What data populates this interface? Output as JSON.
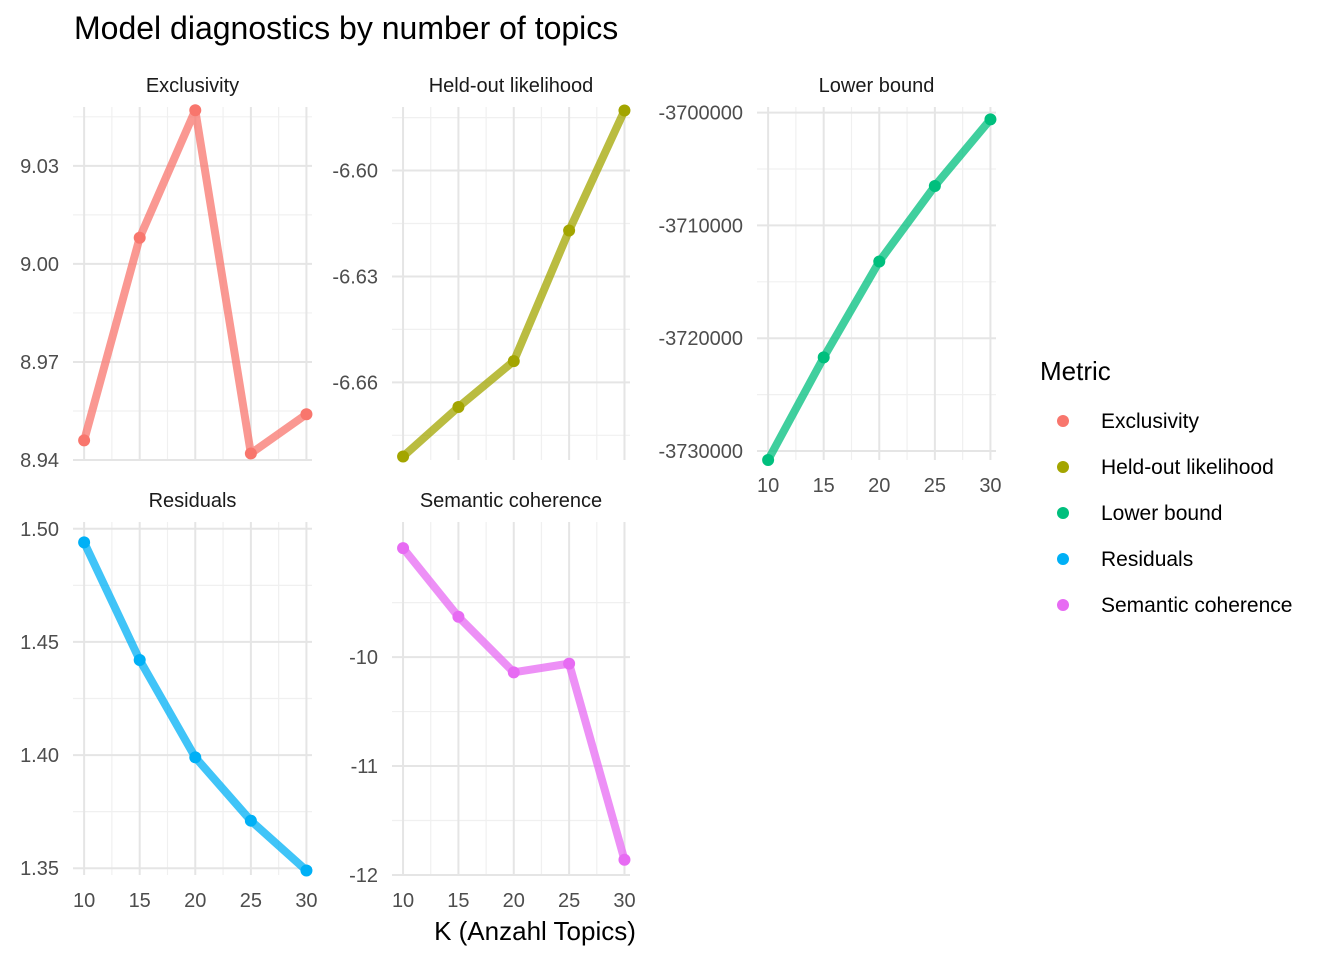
{
  "chart_data": {
    "type": "line",
    "title": "Model diagnostics by number of topics",
    "xlabel": "K (Anzahl Topics)",
    "ylabel": "",
    "x": [
      10,
      15,
      20,
      25,
      30
    ],
    "x_ticks": [
      "10",
      "15",
      "20",
      "25",
      "30"
    ],
    "facet_layout": "wrap, 3 columns, free y scales",
    "grid": true,
    "legend": {
      "title": "Metric",
      "placement": "right",
      "entries": [
        "Exclusivity",
        "Held-out likelihood",
        "Lower bound",
        "Residuals",
        "Semantic coherence"
      ]
    },
    "panels": [
      {
        "name": "Exclusivity",
        "color": "#F8766D",
        "values": [
          8.946,
          9.008,
          9.047,
          8.942,
          8.954
        ],
        "ylim": [
          8.94,
          9.048
        ],
        "y_ticks": [
          8.94,
          8.97,
          9.0,
          9.03
        ],
        "y_tick_labels": [
          "8.94",
          "8.97",
          "9.00",
          "9.03"
        ]
      },
      {
        "name": "Held-out likelihood",
        "color": "#A3A500",
        "values": [
          -6.681,
          -6.667,
          -6.654,
          -6.617,
          -6.583
        ],
        "ylim": [
          -6.682,
          -6.582
        ],
        "y_ticks": [
          -6.66,
          -6.63,
          -6.6
        ],
        "y_tick_labels": [
          "-6.66",
          "-6.63",
          "-6.60"
        ]
      },
      {
        "name": "Lower bound",
        "color": "#00BF7D",
        "values": [
          -3730800,
          -3721700,
          -3713200,
          -3706500,
          -3700600
        ],
        "ylim": [
          -3730800,
          -3699500
        ],
        "y_ticks": [
          -3730000,
          -3720000,
          -3710000,
          -3700000
        ],
        "y_tick_labels": [
          "-3730000",
          "-3720000",
          "-3710000",
          "-3700000"
        ]
      },
      {
        "name": "Residuals",
        "color": "#00B0F6",
        "values": [
          1.494,
          1.442,
          1.399,
          1.371,
          1.349
        ],
        "ylim": [
          1.347,
          1.503
        ],
        "y_ticks": [
          1.35,
          1.4,
          1.45,
          1.5
        ],
        "y_tick_labels": [
          "1.35",
          "1.40",
          "1.45",
          "1.50"
        ]
      },
      {
        "name": "Semantic coherence",
        "color": "#E76BF3",
        "values": [
          -9.0,
          -9.63,
          -10.14,
          -10.06,
          -11.86
        ],
        "ylim": [
          -12.0,
          -8.76
        ],
        "y_ticks": [
          -12,
          -11,
          -10
        ],
        "y_tick_labels": [
          "-12",
          "-11",
          "-10"
        ]
      }
    ]
  }
}
